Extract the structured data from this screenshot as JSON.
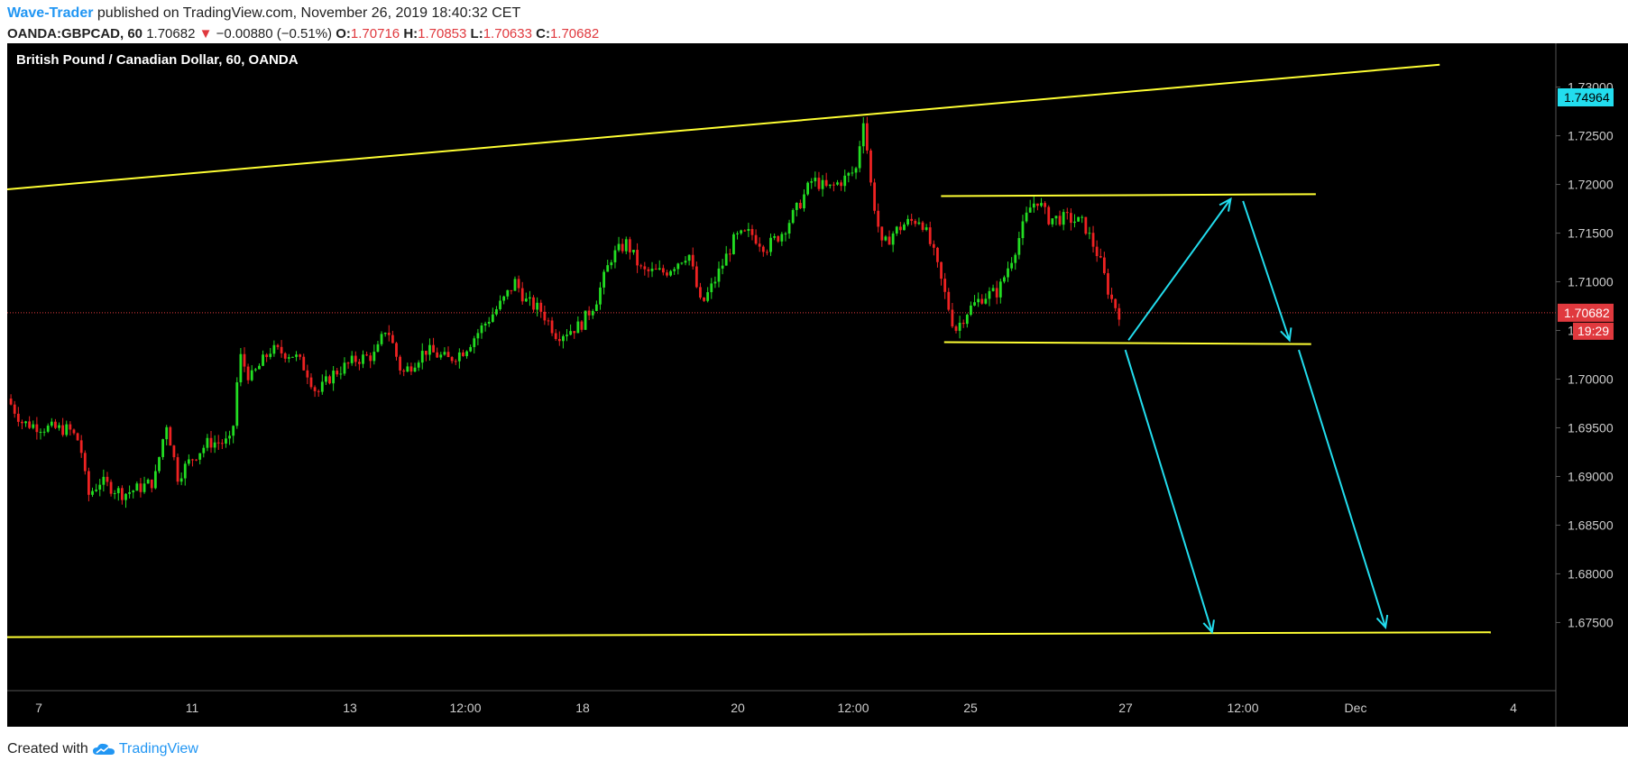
{
  "header": {
    "author": "Wave-Trader",
    "published_text": "published on TradingView.com, November 26, 2019 18:40:32 CET",
    "symbol": "OANDA:GBPCAD, 60",
    "last_price": "1.70682",
    "change_arrow": "▼",
    "change": "−0.00880 (−0.51%)",
    "open_label": "O:",
    "open": "1.70716",
    "high_label": "H:",
    "high": "1.70853",
    "low_label": "L:",
    "low": "1.70633",
    "close_label": "C:",
    "close": "1.70682"
  },
  "chart_title": "British Pound / Canadian Dollar, 60, OANDA",
  "footer": {
    "created_with": "Created with",
    "brand": "TradingView"
  },
  "colors": {
    "background": "#000000",
    "up_candle": "#22dd22",
    "down_candle": "#ee2222",
    "trendline": "#ffff33",
    "arrow": "#22ddee",
    "price_line": "#e0393e",
    "target_badge": "#22ddee"
  },
  "chart_data": {
    "type": "candlestick",
    "title": "British Pound / Canadian Dollar, 60, OANDA",
    "interval": "60",
    "ylim": [
      1.668,
      1.7345
    ],
    "y_ticks": [
      "1.73000",
      "1.72500",
      "1.72000",
      "1.71500",
      "1.71000",
      "1.70500",
      "1.70000",
      "1.69500",
      "1.69000",
      "1.68500",
      "1.68000",
      "1.67500"
    ],
    "x_ticks": [
      "7",
      "11",
      "13",
      "12:00",
      "18",
      "20",
      "12:00",
      "25",
      "27",
      "12:00",
      "Dec",
      "4"
    ],
    "last_price": {
      "value": 1.70682,
      "label": "1.70682",
      "countdown": "19:29"
    },
    "target_price": {
      "value": 1.74964,
      "label": "1.74964"
    },
    "price_path": [
      [
        0.0,
        1.698
      ],
      [
        0.01,
        1.6955
      ],
      [
        0.025,
        1.695
      ],
      [
        0.04,
        1.6948
      ],
      [
        0.047,
        1.6935
      ],
      [
        0.052,
        1.688
      ],
      [
        0.06,
        1.6895
      ],
      [
        0.075,
        1.6882
      ],
      [
        0.085,
        1.6888
      ],
      [
        0.095,
        1.6895
      ],
      [
        0.1,
        1.6935
      ],
      [
        0.103,
        1.6955
      ],
      [
        0.11,
        1.69
      ],
      [
        0.12,
        1.692
      ],
      [
        0.13,
        1.6935
      ],
      [
        0.145,
        1.6935
      ],
      [
        0.15,
        1.7025
      ],
      [
        0.157,
        1.7
      ],
      [
        0.17,
        1.703
      ],
      [
        0.185,
        1.7025
      ],
      [
        0.193,
        1.701
      ],
      [
        0.2,
        1.6985
      ],
      [
        0.21,
        1.7005
      ],
      [
        0.225,
        1.702
      ],
      [
        0.238,
        1.7025
      ],
      [
        0.245,
        1.7055
      ],
      [
        0.255,
        1.7005
      ],
      [
        0.27,
        1.703
      ],
      [
        0.285,
        1.702
      ],
      [
        0.295,
        1.703
      ],
      [
        0.31,
        1.706
      ],
      [
        0.32,
        1.708
      ],
      [
        0.328,
        1.71
      ],
      [
        0.335,
        1.708
      ],
      [
        0.345,
        1.707
      ],
      [
        0.355,
        1.7045
      ],
      [
        0.37,
        1.7055
      ],
      [
        0.38,
        1.708
      ],
      [
        0.39,
        1.7125
      ],
      [
        0.4,
        1.714
      ],
      [
        0.41,
        1.711
      ],
      [
        0.425,
        1.711
      ],
      [
        0.44,
        1.713
      ],
      [
        0.448,
        1.7075
      ],
      [
        0.455,
        1.7095
      ],
      [
        0.47,
        1.7145
      ],
      [
        0.48,
        1.715
      ],
      [
        0.49,
        1.7135
      ],
      [
        0.5,
        1.715
      ],
      [
        0.51,
        1.7175
      ],
      [
        0.52,
        1.7205
      ],
      [
        0.53,
        1.7195
      ],
      [
        0.54,
        1.7205
      ],
      [
        0.548,
        1.7215
      ],
      [
        0.553,
        1.727
      ],
      [
        0.558,
        1.7195
      ],
      [
        0.565,
        1.7135
      ],
      [
        0.572,
        1.715
      ],
      [
        0.58,
        1.716
      ],
      [
        0.59,
        1.7165
      ],
      [
        0.598,
        1.713
      ],
      [
        0.605,
        1.709
      ],
      [
        0.612,
        1.705
      ],
      [
        0.62,
        1.707
      ],
      [
        0.63,
        1.7085
      ],
      [
        0.64,
        1.709
      ],
      [
        0.65,
        1.713
      ],
      [
        0.66,
        1.7175
      ],
      [
        0.665,
        1.7185
      ],
      [
        0.672,
        1.7165
      ],
      [
        0.685,
        1.7165
      ],
      [
        0.695,
        1.716
      ],
      [
        0.705,
        1.7125
      ],
      [
        0.712,
        1.7085
      ],
      [
        0.718,
        1.7068
      ]
    ],
    "lines": [
      {
        "name": "upper-channel",
        "p1": [
          0.0,
          1.7195
        ],
        "p2": [
          0.925,
          1.7323
        ]
      },
      {
        "name": "lower-channel",
        "p1": [
          0.0,
          1.6735
        ],
        "p2": [
          0.958,
          1.674
        ]
      },
      {
        "name": "range-top",
        "p1": [
          0.603,
          1.7188
        ],
        "p2": [
          0.845,
          1.719
        ]
      },
      {
        "name": "range-bottom",
        "p1": [
          0.605,
          1.7038
        ],
        "p2": [
          0.842,
          1.7036
        ]
      }
    ],
    "arrows": [
      {
        "from": [
          0.724,
          1.704
        ],
        "to": [
          0.79,
          1.7185
        ]
      },
      {
        "from": [
          0.798,
          1.7183
        ],
        "to": [
          0.828,
          1.704
        ]
      },
      {
        "from": [
          0.722,
          1.703
        ],
        "to": [
          0.778,
          1.674
        ]
      },
      {
        "from": [
          0.834,
          1.703
        ],
        "to": [
          0.89,
          1.6745
        ]
      }
    ]
  }
}
